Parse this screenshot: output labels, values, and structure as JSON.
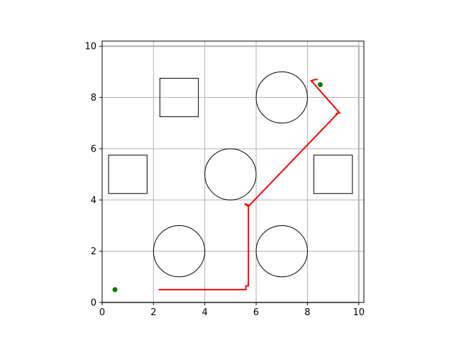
{
  "chart_data": {
    "type": "scatter",
    "title": "",
    "xlabel": "",
    "ylabel": "",
    "xlim": [
      0,
      10.2
    ],
    "ylim": [
      0,
      10.2
    ],
    "grid": true,
    "x_ticks": [
      "0",
      "2",
      "4",
      "6",
      "8",
      "10"
    ],
    "y_ticks": [
      "0",
      "2",
      "4",
      "6",
      "8",
      "10"
    ],
    "boundary": {
      "x": [
        0,
        10,
        10,
        0
      ],
      "y": [
        0,
        0,
        10,
        10
      ]
    },
    "obstacles": {
      "circles": [
        {
          "cx": 3,
          "cy": 2,
          "r": 1
        },
        {
          "cx": 7,
          "cy": 2,
          "r": 1
        },
        {
          "cx": 5,
          "cy": 5,
          "r": 1
        },
        {
          "cx": 7,
          "cy": 8,
          "r": 1
        }
      ],
      "squares": [
        {
          "cx": 1,
          "cy": 5,
          "half": 0.75
        },
        {
          "cx": 9,
          "cy": 5,
          "half": 0.75
        },
        {
          "cx": 3,
          "cy": 8,
          "half": 0.75
        }
      ]
    },
    "points": {
      "x": [
        0.5,
        8.5
      ],
      "y": [
        0.5,
        8.5
      ],
      "color": "#008000"
    },
    "path": {
      "color": "#ff0000",
      "x": [
        2.2,
        5.6,
        5.6,
        5.7,
        5.7,
        5.55,
        5.7,
        9.2,
        9.1,
        9.25,
        8.15,
        8.3,
        8.4
      ],
      "y": [
        0.5,
        0.5,
        0.65,
        0.65,
        3.8,
        3.85,
        3.75,
        7.4,
        7.35,
        7.4,
        8.65,
        8.7,
        8.7
      ]
    },
    "colors": {
      "grid": "#b0b0b0",
      "axes": "#000000",
      "obstacle": "#000000"
    }
  }
}
